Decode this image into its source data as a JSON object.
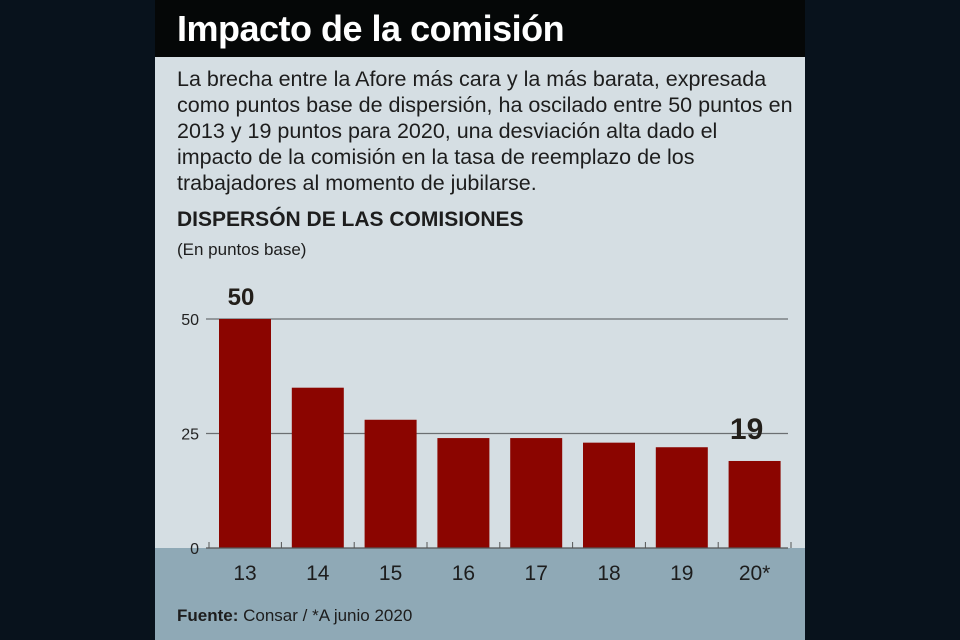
{
  "title": "Impacto de la comisión",
  "description": "La brecha entre la Afore más cara y la más barata, expresada como puntos base de dispersión, ha oscilado entre 50 puntos en 2013 y 19 puntos para 2020, una desviación alta dado el impacto de la comisión en la tasa de reemplazo de los trabajadores al momento de jubilarse.",
  "source_label": "Fuente:",
  "source_text": " Consar / *A junio 2020",
  "colors": {
    "bar": "#8b0500",
    "panel": "#d5dee3",
    "bottom": "#8fa9b6"
  },
  "chart_data": {
    "type": "bar",
    "title": "DISPERSÓN DE LAS COMISIONES",
    "subtitle": "(En puntos base)",
    "categories": [
      "13",
      "14",
      "15",
      "16",
      "17",
      "18",
      "19",
      "20*"
    ],
    "values": [
      50,
      35,
      28,
      24,
      24,
      23,
      22,
      19
    ],
    "ylim": [
      0,
      50
    ],
    "yticks": [
      0,
      25,
      50
    ],
    "grid": true,
    "data_labels": [
      {
        "category": "13",
        "text": "50"
      },
      {
        "category": "20*",
        "text": "19"
      }
    ]
  }
}
